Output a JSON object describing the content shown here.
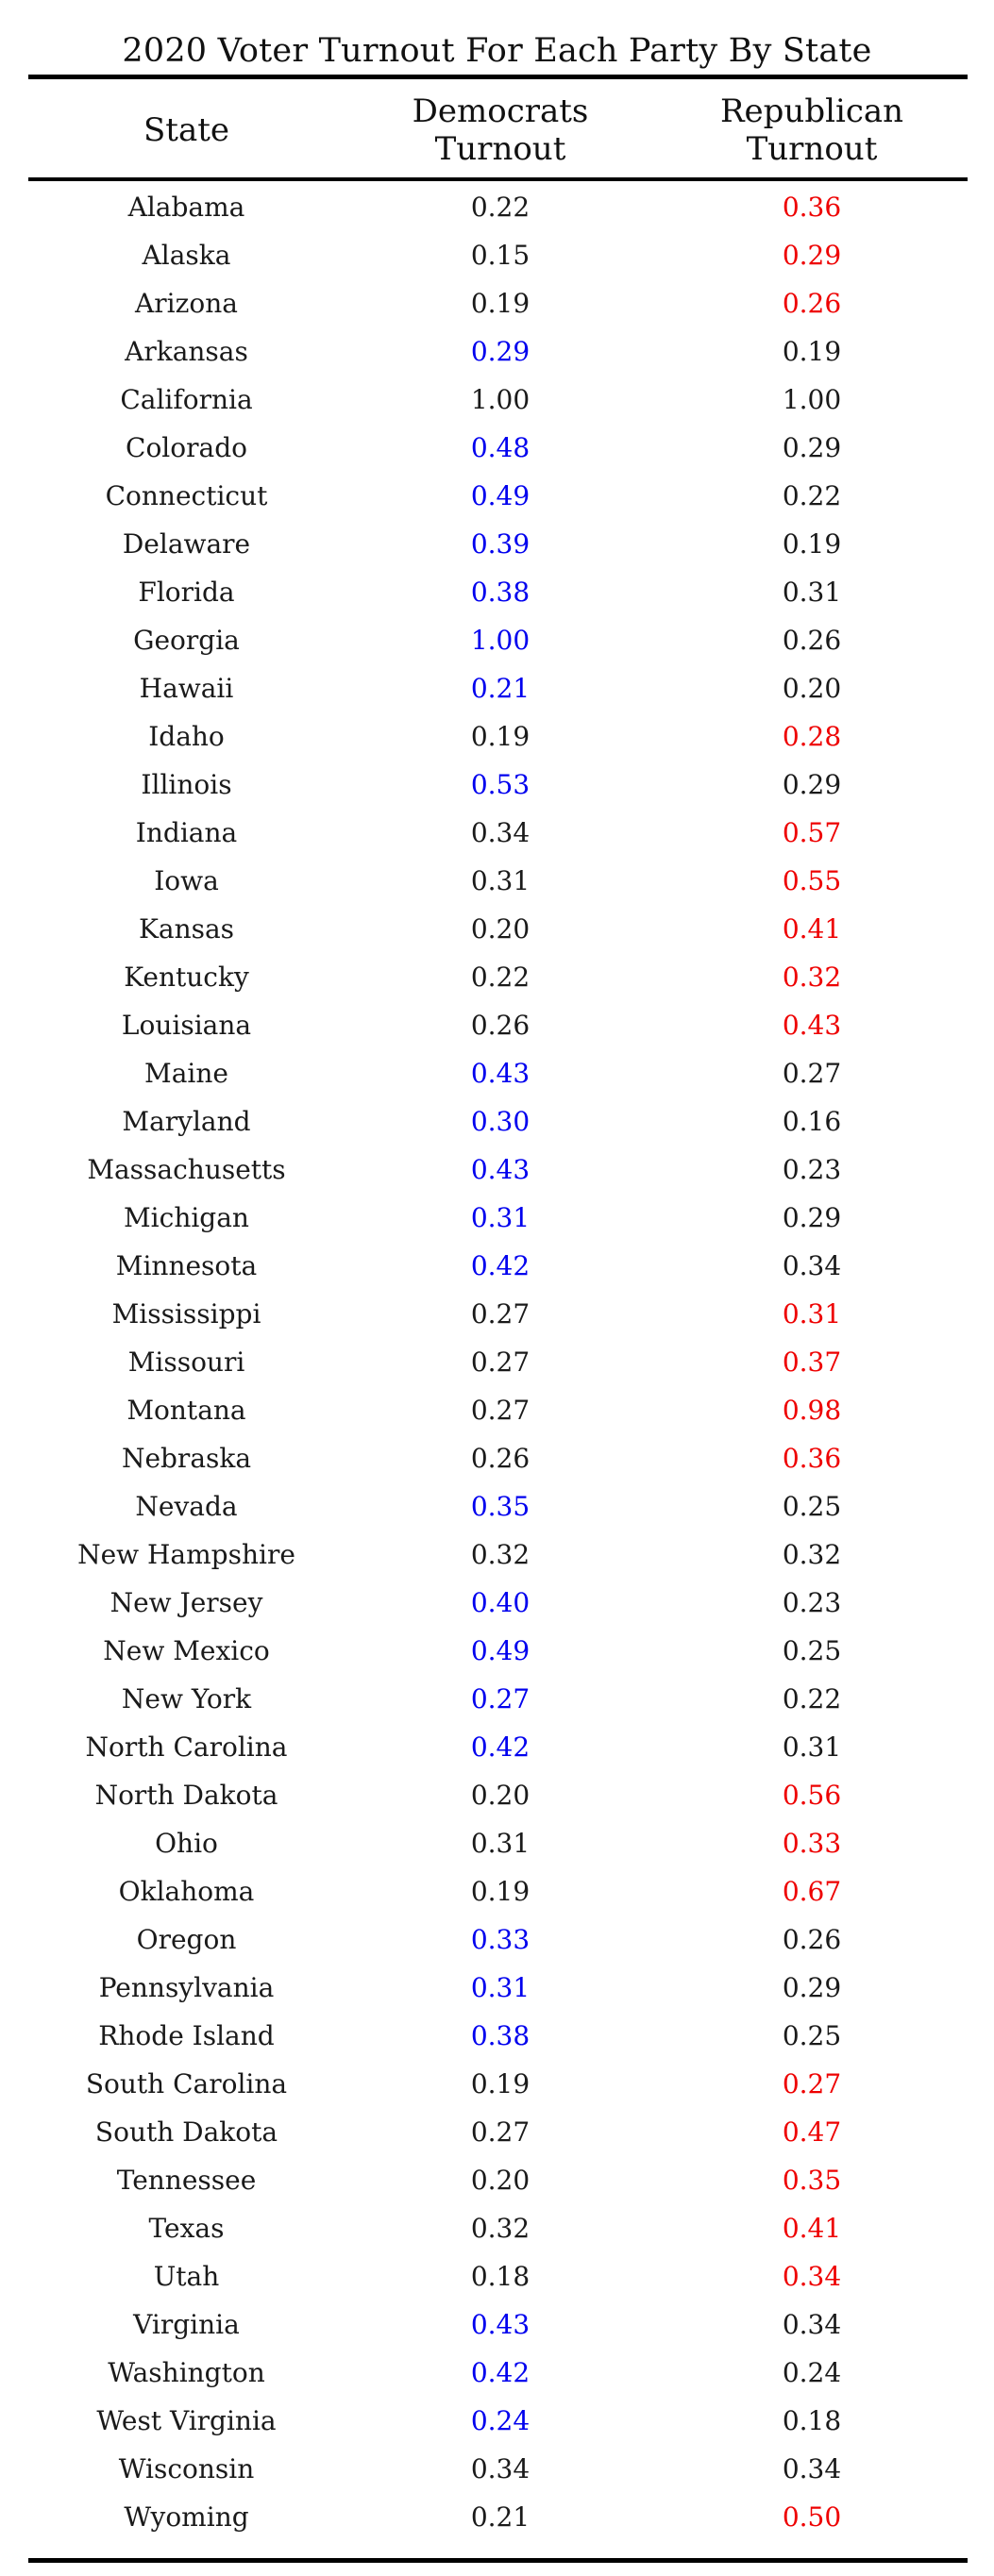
{
  "chart_data": {
    "type": "table",
    "title": "2020 Voter Turnout For Each Party By State",
    "columns": [
      "State",
      "Democrats Turnout",
      "Republican Turnout"
    ],
    "header_lines": [
      [
        "State"
      ],
      [
        "Democrats",
        "Turnout"
      ],
      [
        "Republican",
        "Turnout"
      ]
    ],
    "colors": {
      "default": "#1a1a1a",
      "democrat_highlight": "#0000ee",
      "republican_highlight": "#ee0000"
    },
    "rows": [
      {
        "state": "Alabama",
        "dem": "0.22",
        "rep": "0.36",
        "highlight": "rep"
      },
      {
        "state": "Alaska",
        "dem": "0.15",
        "rep": "0.29",
        "highlight": "rep"
      },
      {
        "state": "Arizona",
        "dem": "0.19",
        "rep": "0.26",
        "highlight": "rep"
      },
      {
        "state": "Arkansas",
        "dem": "0.29",
        "rep": "0.19",
        "highlight": "dem"
      },
      {
        "state": "California",
        "dem": "1.00",
        "rep": "1.00",
        "highlight": "none"
      },
      {
        "state": "Colorado",
        "dem": "0.48",
        "rep": "0.29",
        "highlight": "dem"
      },
      {
        "state": "Connecticut",
        "dem": "0.49",
        "rep": "0.22",
        "highlight": "dem"
      },
      {
        "state": "Delaware",
        "dem": "0.39",
        "rep": "0.19",
        "highlight": "dem"
      },
      {
        "state": "Florida",
        "dem": "0.38",
        "rep": "0.31",
        "highlight": "dem"
      },
      {
        "state": "Georgia",
        "dem": "1.00",
        "rep": "0.26",
        "highlight": "dem"
      },
      {
        "state": "Hawaii",
        "dem": "0.21",
        "rep": "0.20",
        "highlight": "dem"
      },
      {
        "state": "Idaho",
        "dem": "0.19",
        "rep": "0.28",
        "highlight": "rep"
      },
      {
        "state": "Illinois",
        "dem": "0.53",
        "rep": "0.29",
        "highlight": "dem"
      },
      {
        "state": "Indiana",
        "dem": "0.34",
        "rep": "0.57",
        "highlight": "rep"
      },
      {
        "state": "Iowa",
        "dem": "0.31",
        "rep": "0.55",
        "highlight": "rep"
      },
      {
        "state": "Kansas",
        "dem": "0.20",
        "rep": "0.41",
        "highlight": "rep"
      },
      {
        "state": "Kentucky",
        "dem": "0.22",
        "rep": "0.32",
        "highlight": "rep"
      },
      {
        "state": "Louisiana",
        "dem": "0.26",
        "rep": "0.43",
        "highlight": "rep"
      },
      {
        "state": "Maine",
        "dem": "0.43",
        "rep": "0.27",
        "highlight": "dem"
      },
      {
        "state": "Maryland",
        "dem": "0.30",
        "rep": "0.16",
        "highlight": "dem"
      },
      {
        "state": "Massachusetts",
        "dem": "0.43",
        "rep": "0.23",
        "highlight": "dem"
      },
      {
        "state": "Michigan",
        "dem": "0.31",
        "rep": "0.29",
        "highlight": "dem"
      },
      {
        "state": "Minnesota",
        "dem": "0.42",
        "rep": "0.34",
        "highlight": "dem"
      },
      {
        "state": "Mississippi",
        "dem": "0.27",
        "rep": "0.31",
        "highlight": "rep"
      },
      {
        "state": "Missouri",
        "dem": "0.27",
        "rep": "0.37",
        "highlight": "rep"
      },
      {
        "state": "Montana",
        "dem": "0.27",
        "rep": "0.98",
        "highlight": "rep"
      },
      {
        "state": "Nebraska",
        "dem": "0.26",
        "rep": "0.36",
        "highlight": "rep"
      },
      {
        "state": "Nevada",
        "dem": "0.35",
        "rep": "0.25",
        "highlight": "dem"
      },
      {
        "state": "New Hampshire",
        "dem": "0.32",
        "rep": "0.32",
        "highlight": "none"
      },
      {
        "state": "New Jersey",
        "dem": "0.40",
        "rep": "0.23",
        "highlight": "dem"
      },
      {
        "state": "New Mexico",
        "dem": "0.49",
        "rep": "0.25",
        "highlight": "dem"
      },
      {
        "state": "New York",
        "dem": "0.27",
        "rep": "0.22",
        "highlight": "dem"
      },
      {
        "state": "North Carolina",
        "dem": "0.42",
        "rep": "0.31",
        "highlight": "dem"
      },
      {
        "state": "North Dakota",
        "dem": "0.20",
        "rep": "0.56",
        "highlight": "rep"
      },
      {
        "state": "Ohio",
        "dem": "0.31",
        "rep": "0.33",
        "highlight": "rep"
      },
      {
        "state": "Oklahoma",
        "dem": "0.19",
        "rep": "0.67",
        "highlight": "rep"
      },
      {
        "state": "Oregon",
        "dem": "0.33",
        "rep": "0.26",
        "highlight": "dem"
      },
      {
        "state": "Pennsylvania",
        "dem": "0.31",
        "rep": "0.29",
        "highlight": "dem"
      },
      {
        "state": "Rhode Island",
        "dem": "0.38",
        "rep": "0.25",
        "highlight": "dem"
      },
      {
        "state": "South Carolina",
        "dem": "0.19",
        "rep": "0.27",
        "highlight": "rep"
      },
      {
        "state": "South Dakota",
        "dem": "0.27",
        "rep": "0.47",
        "highlight": "rep"
      },
      {
        "state": "Tennessee",
        "dem": "0.20",
        "rep": "0.35",
        "highlight": "rep"
      },
      {
        "state": "Texas",
        "dem": "0.32",
        "rep": "0.41",
        "highlight": "rep"
      },
      {
        "state": "Utah",
        "dem": "0.18",
        "rep": "0.34",
        "highlight": "rep"
      },
      {
        "state": "Virginia",
        "dem": "0.43",
        "rep": "0.34",
        "highlight": "dem"
      },
      {
        "state": "Washington",
        "dem": "0.42",
        "rep": "0.24",
        "highlight": "dem"
      },
      {
        "state": "West Virginia",
        "dem": "0.24",
        "rep": "0.18",
        "highlight": "dem"
      },
      {
        "state": "Wisconsin",
        "dem": "0.34",
        "rep": "0.34",
        "highlight": "none"
      },
      {
        "state": "Wyoming",
        "dem": "0.21",
        "rep": "0.50",
        "highlight": "rep"
      }
    ]
  }
}
